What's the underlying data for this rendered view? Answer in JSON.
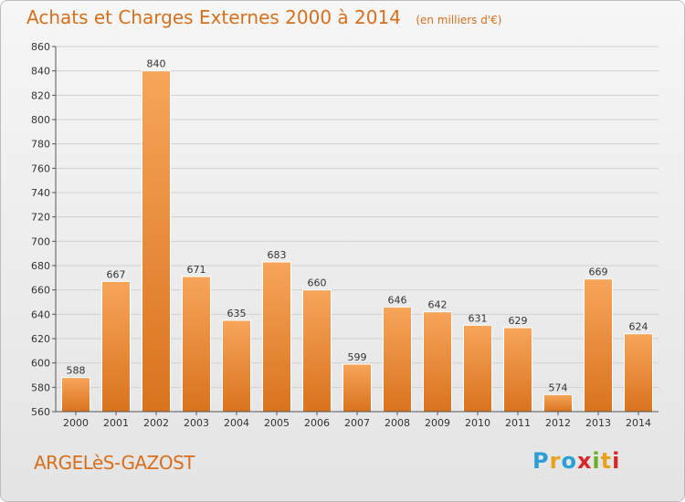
{
  "header": {
    "title": "Achats et Charges Externes 2000 à 2014",
    "subtitle": "(en milliers d'€)"
  },
  "footer": {
    "town": "ARGELèS-GAZOST",
    "logo_letters": [
      "P",
      "r",
      "o",
      "x",
      "i",
      "t",
      "i"
    ],
    "logo_colors": [
      "#2a9fd8",
      "#e8a21d",
      "#2a9fd8",
      "#d9262a",
      "#6ab023",
      "#e8a21d",
      "#d9262a"
    ]
  },
  "colors": {
    "bar_top": "#f7a55a",
    "bar_bottom": "#d9731e",
    "grid": "#d0d0d0",
    "axis": "#555555"
  },
  "chart_data": {
    "type": "bar",
    "title": "Achats et Charges Externes 2000 à 2014",
    "subtitle": "(en milliers d'€)",
    "xlabel": "",
    "ylabel": "",
    "categories": [
      "2000",
      "2001",
      "2002",
      "2003",
      "2004",
      "2005",
      "2006",
      "2007",
      "2008",
      "2009",
      "2010",
      "2011",
      "2012",
      "2013",
      "2014"
    ],
    "values": [
      588,
      667,
      840,
      671,
      635,
      683,
      660,
      599,
      646,
      642,
      631,
      629,
      574,
      669,
      624
    ],
    "ylim": [
      560,
      860
    ],
    "yticks": [
      560,
      580,
      600,
      620,
      640,
      660,
      680,
      700,
      720,
      740,
      760,
      780,
      800,
      820,
      840,
      860
    ],
    "grid": true,
    "legend": "none"
  }
}
